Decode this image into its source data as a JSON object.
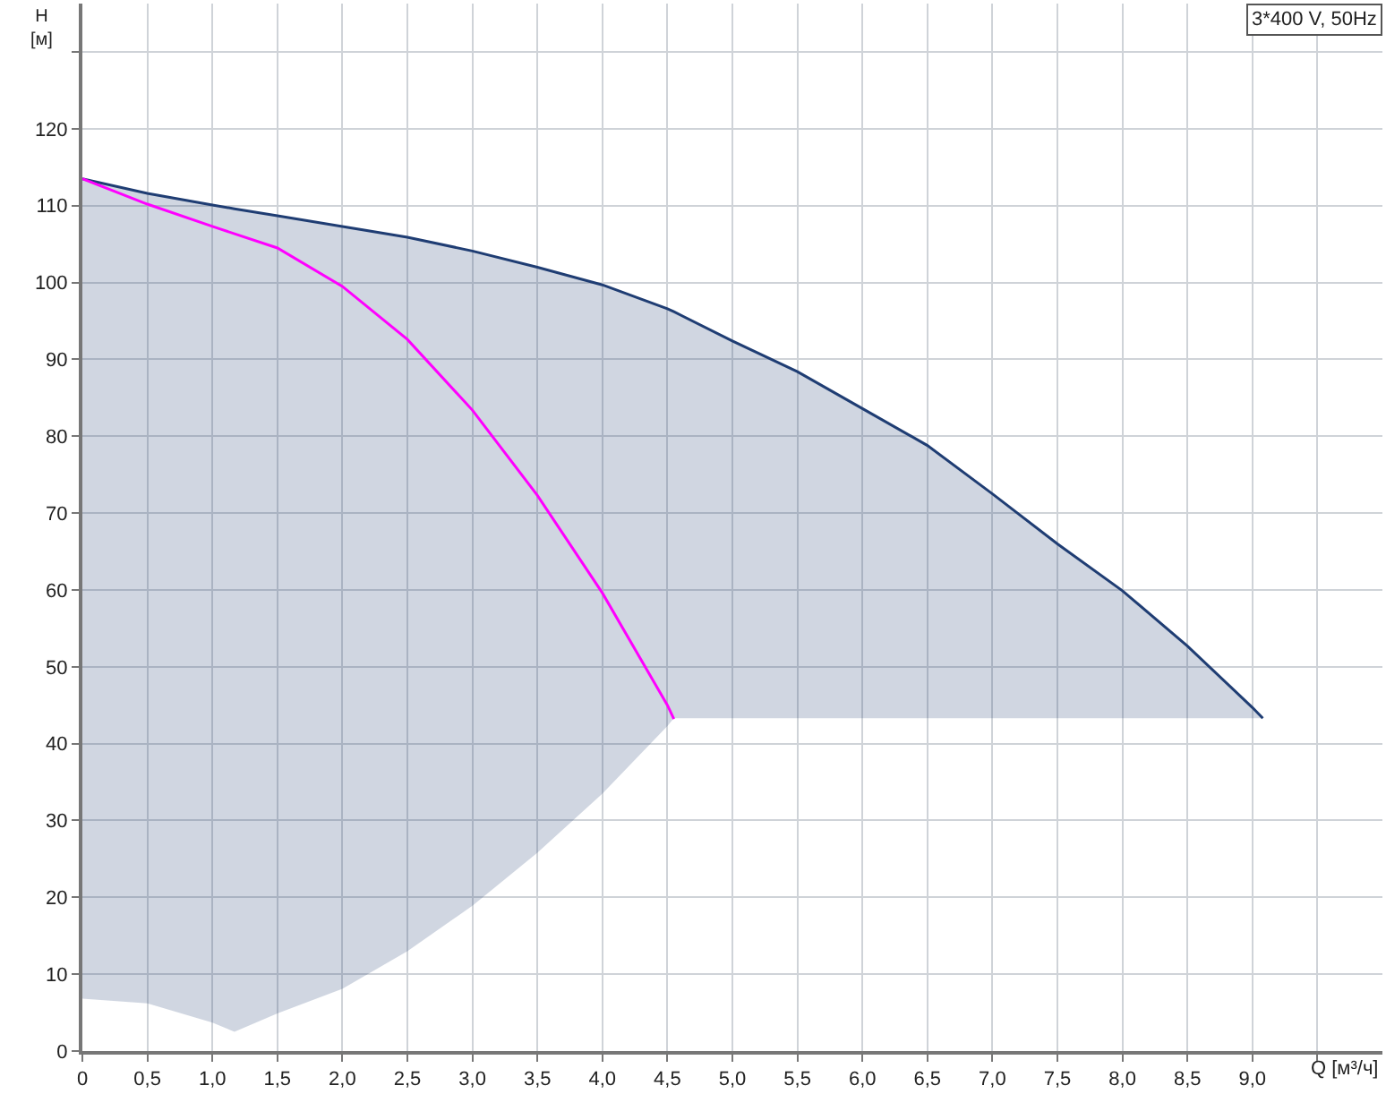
{
  "chart_data": {
    "type": "line",
    "xlabel": "Q [м³/ч]",
    "ylabel": "H [м]",
    "annotations": [
      "3*400 V, 50Hz"
    ],
    "xlim": [
      0,
      10
    ],
    "ylim": [
      0,
      136.3
    ],
    "xticks": [
      0,
      {
        "value": 0.5,
        "label": "0,5"
      },
      {
        "value": 1,
        "label": "1,0"
      },
      {
        "value": 1.5,
        "label": "1,5"
      },
      {
        "value": 2,
        "label": "2,0"
      },
      {
        "value": 2.5,
        "label": "2,5"
      },
      {
        "value": 3,
        "label": "3,0"
      },
      {
        "value": 3.5,
        "label": "3,5"
      },
      {
        "value": 4,
        "label": "4,0"
      },
      {
        "value": 4.5,
        "label": "4,5"
      },
      {
        "value": 5,
        "label": "5,0"
      },
      {
        "value": 5.5,
        "label": "5,5"
      },
      {
        "value": 6,
        "label": "6,0"
      },
      {
        "value": 6.5,
        "label": "6,5"
      },
      {
        "value": 7,
        "label": "7,0"
      },
      {
        "value": 7.5,
        "label": "7,5"
      },
      {
        "value": 8,
        "label": "8,0"
      },
      {
        "value": 8.5,
        "label": "8,5"
      },
      {
        "value": 9,
        "label": "9,0"
      },
      {
        "value": 9.5,
        "label": null
      }
    ],
    "yticks": [
      0,
      10,
      20,
      30,
      40,
      50,
      60,
      70,
      80,
      90,
      100,
      110,
      120,
      {
        "value": 130,
        "label": null
      }
    ],
    "grid": true,
    "line_style": "solid",
    "marker": "none",
    "series": [
      {
        "color": "#1f3d73",
        "x": [
          0,
          0.5,
          1.0,
          1.17,
          1.5,
          2.0,
          2.5,
          3.0,
          3.5,
          4.0,
          4.5,
          4.55,
          5.0,
          5.5,
          6.0,
          6.5,
          7.0,
          7.5,
          8.0,
          8.5,
          9.0,
          9.08
        ],
        "values": [
          113.5,
          111.6,
          110.1,
          109.6,
          108.7,
          107.3,
          105.9,
          104.1,
          102.0,
          99.7,
          96.6,
          96.2,
          92.4,
          88.4,
          83.6,
          78.8,
          72.5,
          66.0,
          59.9,
          52.7,
          44.7,
          43.3
        ],
        "lower": [
          6.8,
          6.2,
          3.7,
          2.5,
          4.9,
          8.1,
          13.0,
          18.9,
          25.8,
          33.5,
          42.3,
          43.3,
          43.3,
          43.3,
          43.3,
          43.3,
          43.3,
          43.3,
          43.3,
          43.3,
          43.3,
          43.3
        ],
        "upper": [
          113.5,
          111.6,
          110.1,
          109.6,
          108.7,
          107.3,
          105.9,
          104.1,
          102.0,
          99.7,
          96.6,
          96.2,
          92.4,
          88.4,
          83.6,
          78.8,
          72.5,
          66.0,
          59.9,
          52.7,
          44.7,
          43.3
        ]
      },
      {
        "color": "#ff00ff",
        "x": [
          0,
          0.5,
          1.0,
          1.5,
          2.0,
          2.5,
          3.0,
          3.5,
          4.0,
          4.5,
          4.55
        ],
        "values": [
          113.5,
          110.2,
          107.3,
          104.5,
          99.5,
          92.6,
          83.4,
          72.3,
          59.6,
          45.0,
          43.2
        ]
      }
    ]
  }
}
